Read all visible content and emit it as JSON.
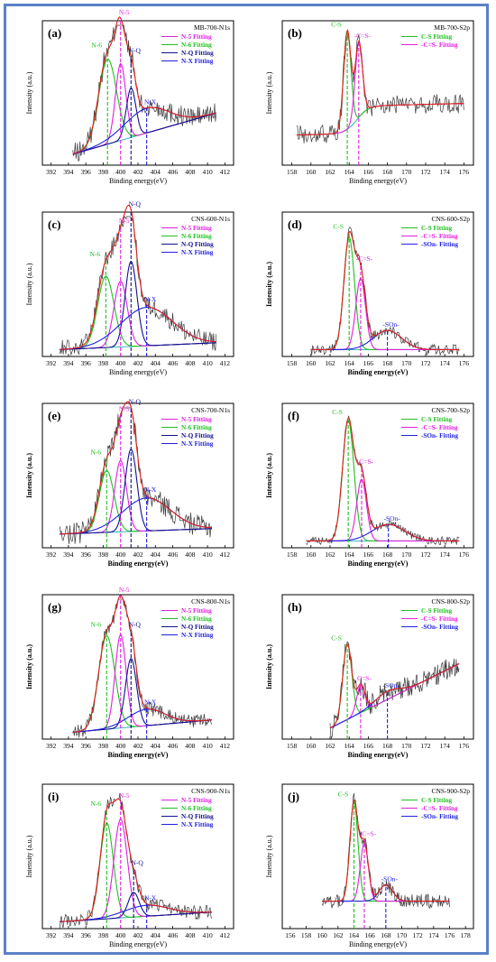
{
  "colors": {
    "frame": "#5b80c8",
    "data": "#3a3a3a",
    "envelope": "#e0201c",
    "N5": "#e020e0",
    "N6": "#20c020",
    "NQ": "#101090",
    "NX": "#2020e0",
    "CS": "#20c020",
    "CeqS": "#e020e0",
    "SOn": "#2020e0",
    "background": "#20b0b0"
  },
  "chart_data": [
    {
      "panel": "(a)",
      "type": "line",
      "spectrum": "N1s",
      "sample": "MB-700-N1s",
      "xlabel": "Binding energy(eV)",
      "ylabel": "Intensity (a.u.)",
      "bold_labels": false,
      "xlim": [
        391,
        413
      ],
      "ticks": [
        392,
        394,
        396,
        398,
        400,
        402,
        404,
        406,
        408,
        410,
        412
      ],
      "legend": [
        "N-5 Fitting",
        "N-6 Fitting",
        "N-Q Fitting",
        "N-X Fitting"
      ],
      "data_range": [
        394.5,
        411
      ],
      "baseline": {
        "start": 0.08,
        "end": 0.38
      },
      "peaks": [
        {
          "label": "N-6",
          "key": "N6",
          "center": 398.5,
          "height": 0.62,
          "fwhm": 2.4,
          "marker": true
        },
        {
          "label": "N-5",
          "key": "N5",
          "center": 400.0,
          "height": 0.56,
          "fwhm": 1.4,
          "marker": true
        },
        {
          "label": "N-Q",
          "key": "NQ",
          "center": 401.2,
          "height": 0.36,
          "fwhm": 1.3,
          "marker": true
        },
        {
          "label": "N-X",
          "key": "NX",
          "center": 403.0,
          "height": 0.18,
          "fwhm": 6.0,
          "marker": true
        }
      ],
      "noise": 0.08
    },
    {
      "panel": "(b)",
      "type": "line",
      "spectrum": "S2p",
      "sample": "MB-700-S2p",
      "xlabel": "Binding energy(eV)",
      "ylabel": "Intensity (a.u.)",
      "bold_labels": false,
      "xlim": [
        157,
        177
      ],
      "ticks": [
        158,
        160,
        162,
        164,
        166,
        168,
        170,
        172,
        174,
        176
      ],
      "legend": [
        "C-S Fitting",
        "-C=S- Fitting"
      ],
      "data_range": [
        158.5,
        176
      ],
      "baseline": {
        "start": 0.22,
        "end": 0.25
      },
      "step": {
        "center": 164.8,
        "height": 0.2,
        "width": 0.6
      },
      "peaks": [
        {
          "label": "C-S",
          "key": "CS",
          "center": 163.8,
          "height": 0.72,
          "fwhm": 0.9,
          "marker": true
        },
        {
          "label": "-C=S-",
          "key": "CeqS",
          "center": 165.0,
          "height": 0.55,
          "fwhm": 0.9,
          "marker": true
        }
      ],
      "noise": 0.07
    },
    {
      "panel": "(c)",
      "type": "line",
      "spectrum": "N1s",
      "sample": "CNS-600-N1s",
      "xlabel": "Binding energy(eV)",
      "ylabel": "Intensity (a.u.)",
      "bold_labels": false,
      "xlim": [
        391,
        413
      ],
      "ticks": [
        392,
        394,
        396,
        398,
        400,
        402,
        404,
        406,
        408,
        410,
        412
      ],
      "legend": [
        "N-5 Fitting",
        "N-6 Fitting",
        "N-Q Fitting",
        "N-X Fitting"
      ],
      "data_range": [
        393,
        411
      ],
      "baseline": {
        "start": 0.05,
        "end": 0.1
      },
      "peaks": [
        {
          "label": "N-6",
          "key": "N6",
          "center": 398.3,
          "height": 0.52,
          "fwhm": 2.2,
          "marker": true
        },
        {
          "label": "N-5",
          "key": "N5",
          "center": 400.0,
          "height": 0.48,
          "fwhm": 1.8,
          "marker": true
        },
        {
          "label": "N-Q",
          "key": "NQ",
          "center": 401.2,
          "height": 0.62,
          "fwhm": 1.6,
          "marker": true
        },
        {
          "label": "N-X",
          "key": "NX",
          "center": 403.0,
          "height": 0.28,
          "fwhm": 7.0,
          "marker": true
        }
      ],
      "noise": 0.07
    },
    {
      "panel": "(d)",
      "type": "line",
      "spectrum": "S2p",
      "sample": "CNS-600-S2p",
      "xlabel": "Binding energy(eV)",
      "ylabel": "Intensity (a.u.)",
      "bold_labels": true,
      "xlim": [
        157,
        177
      ],
      "ticks": [
        158,
        160,
        162,
        164,
        166,
        168,
        170,
        172,
        174,
        176
      ],
      "legend": [
        "C-S Fitting",
        "-C=S- Fitting",
        "-SOn- Fitting"
      ],
      "data_range": [
        160,
        175.5
      ],
      "baseline": {
        "start": 0.05,
        "end": 0.05
      },
      "peaks": [
        {
          "label": "C-S",
          "key": "CS",
          "center": 164.0,
          "height": 0.82,
          "fwhm": 1.3,
          "marker": true
        },
        {
          "label": "-C=S-",
          "key": "CeqS",
          "center": 165.2,
          "height": 0.52,
          "fwhm": 1.2,
          "marker": true
        },
        {
          "label": "-SOn-",
          "key": "SOn",
          "center": 168.0,
          "height": 0.14,
          "fwhm": 3.5,
          "marker": true
        }
      ],
      "noise": 0.04
    },
    {
      "panel": "(e)",
      "type": "line",
      "spectrum": "N1s",
      "sample": "CNS-700-N1s",
      "xlabel": "Binding energy(eV)",
      "ylabel": "Intensity (a.u.)",
      "bold_labels": true,
      "xlim": [
        391,
        413
      ],
      "ticks": [
        392,
        394,
        396,
        398,
        400,
        402,
        404,
        406,
        408,
        410,
        412
      ],
      "legend": [
        "N-5 Fitting",
        "N-6 Fitting",
        "N-Q Fitting",
        "N-X Fitting"
      ],
      "data_range": [
        393,
        410.5
      ],
      "baseline": {
        "start": 0.1,
        "end": 0.14
      },
      "peaks": [
        {
          "label": "N-6",
          "key": "N6",
          "center": 398.4,
          "height": 0.45,
          "fwhm": 2.0,
          "marker": true
        },
        {
          "label": "N-5",
          "key": "N5",
          "center": 400.0,
          "height": 0.52,
          "fwhm": 1.6,
          "marker": true
        },
        {
          "label": "N-Q",
          "key": "NQ",
          "center": 401.2,
          "height": 0.6,
          "fwhm": 1.6,
          "marker": true
        },
        {
          "label": "N-X",
          "key": "NX",
          "center": 403.0,
          "height": 0.24,
          "fwhm": 6.5,
          "marker": true
        }
      ],
      "noise": 0.08
    },
    {
      "panel": "(f)",
      "type": "line",
      "spectrum": "S2p",
      "sample": "CNS-700-S2p",
      "xlabel": "Binding energy(eV)",
      "ylabel": "Intensity (a.u.)",
      "bold_labels": true,
      "xlim": [
        157,
        177
      ],
      "ticks": [
        158,
        160,
        162,
        164,
        166,
        168,
        170,
        172,
        174,
        176
      ],
      "legend": [
        "C-S Fitting",
        "-C=S- Fitting",
        "-SOn- Fitting"
      ],
      "data_range": [
        159.5,
        175.5
      ],
      "baseline": {
        "start": 0.05,
        "end": 0.05
      },
      "peaks": [
        {
          "label": "C-S",
          "key": "CS",
          "center": 163.9,
          "height": 0.88,
          "fwhm": 1.4,
          "marker": true
        },
        {
          "label": "-C=S-",
          "key": "CeqS",
          "center": 165.3,
          "height": 0.45,
          "fwhm": 1.2,
          "marker": true
        },
        {
          "label": "-SOn-",
          "key": "SOn",
          "center": 168.1,
          "height": 0.12,
          "fwhm": 4.0,
          "marker": true
        }
      ],
      "noise": 0.03
    },
    {
      "panel": "(g)",
      "type": "line",
      "spectrum": "N1s",
      "sample": "CNS-800-N1s",
      "xlabel": "Binding energy(eV)",
      "ylabel": "Intensity (a.u.)",
      "bold_labels": true,
      "xlim": [
        391,
        413
      ],
      "ticks": [
        392,
        394,
        396,
        398,
        400,
        402,
        404,
        406,
        408,
        410,
        412
      ],
      "legend": [
        "N-5 Fitting",
        "N-6 Fitting",
        "N-Q Fitting",
        "N-X Fitting"
      ],
      "data_range": [
        394.5,
        410.5
      ],
      "baseline": {
        "start": 0.05,
        "end": 0.14
      },
      "peaks": [
        {
          "label": "N-6",
          "key": "N6",
          "center": 398.4,
          "height": 0.68,
          "fwhm": 2.2,
          "marker": true
        },
        {
          "label": "N-5",
          "key": "N5",
          "center": 400.0,
          "height": 0.68,
          "fwhm": 1.5,
          "marker": true
        },
        {
          "label": "N-Q",
          "key": "NQ",
          "center": 401.2,
          "height": 0.5,
          "fwhm": 1.5,
          "marker": true
        },
        {
          "label": "N-X",
          "key": "NX",
          "center": 403.0,
          "height": 0.12,
          "fwhm": 5.0,
          "marker": true
        }
      ],
      "noise": 0.05
    },
    {
      "panel": "(h)",
      "type": "line",
      "spectrum": "S2p",
      "sample": "CNS-800-S2p",
      "xlabel": "Binding energy(eV)",
      "ylabel": "Intensity (a.u.)",
      "bold_labels": true,
      "xlim": [
        157,
        177
      ],
      "ticks": [
        158,
        160,
        162,
        164,
        166,
        168,
        170,
        172,
        174,
        176
      ],
      "legend": [
        "C-S Fitting",
        "-C=S- Fitting",
        "-SOn- Fitting"
      ],
      "data_range": [
        162,
        175.5
      ],
      "baseline": {
        "start": 0.08,
        "end": 0.55
      },
      "peaks": [
        {
          "label": "C-S",
          "key": "CS",
          "center": 163.8,
          "height": 0.55,
          "fwhm": 1.1,
          "marker": true
        },
        {
          "label": "C=S-",
          "key": "CeqS",
          "center": 165.2,
          "height": 0.2,
          "fwhm": 1.0,
          "marker": true
        },
        {
          "label": "-SOn-",
          "key": "SOn",
          "center": 168.0,
          "height": 0.06,
          "fwhm": 3.0,
          "marker": true
        }
      ],
      "noise": 0.08
    },
    {
      "panel": "(i)",
      "type": "line",
      "spectrum": "N1s",
      "sample": "CNS-900-N1s",
      "xlabel": "Binding energy(eV)",
      "ylabel": "Intensity (a.u.)",
      "bold_labels": false,
      "xlim": [
        391,
        413
      ],
      "ticks": [
        392,
        394,
        396,
        398,
        400,
        402,
        404,
        406,
        408,
        410,
        412
      ],
      "legend": [
        "N-5 Fitting",
        "N-6 Fitting",
        "N-Q Fitting",
        "N-X Fitting"
      ],
      "data_range": [
        393,
        410.5
      ],
      "baseline": {
        "start": 0.05,
        "end": 0.12
      },
      "peaks": [
        {
          "label": "N-6",
          "key": "N6",
          "center": 398.4,
          "height": 0.7,
          "fwhm": 1.8,
          "marker": true
        },
        {
          "label": "N-5",
          "key": "N5",
          "center": 400.0,
          "height": 0.72,
          "fwhm": 1.8,
          "marker": true
        },
        {
          "label": "N-Q",
          "key": "NQ",
          "center": 401.5,
          "height": 0.18,
          "fwhm": 1.5,
          "marker": true
        },
        {
          "label": "N-X",
          "key": "NX",
          "center": 403.0,
          "height": 0.08,
          "fwhm": 6.0,
          "marker": true
        }
      ],
      "noise": 0.05
    },
    {
      "panel": "(j)",
      "type": "line",
      "spectrum": "S2p",
      "sample": "CNS-900-S2p",
      "xlabel": "Binding energy(eV)",
      "ylabel": "Intensity (a.u.)",
      "bold_labels": false,
      "xlim": [
        155,
        179
      ],
      "ticks": [
        156,
        158,
        160,
        162,
        164,
        166,
        168,
        170,
        172,
        174,
        176,
        178
      ],
      "legend": [
        "C-S Fitting",
        "-C=S- Fitting",
        "-SOn- Fitting"
      ],
      "data_range": [
        160,
        176
      ],
      "baseline": {
        "start": 0.2,
        "end": 0.2
      },
      "peaks": [
        {
          "label": "C-S",
          "key": "CS",
          "center": 164.0,
          "height": 0.72,
          "fwhm": 1.2,
          "marker": true
        },
        {
          "label": "-C=S-",
          "key": "CeqS",
          "center": 165.3,
          "height": 0.42,
          "fwhm": 1.2,
          "marker": true
        },
        {
          "label": "-SOn-",
          "key": "SOn",
          "center": 168.0,
          "height": 0.12,
          "fwhm": 2.0,
          "marker": true
        }
      ],
      "noise": 0.05
    }
  ]
}
